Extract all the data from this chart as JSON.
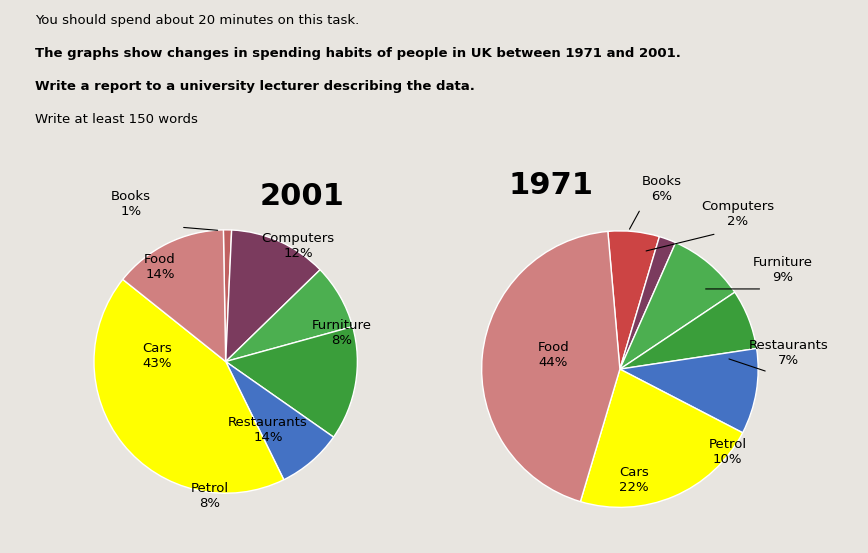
{
  "header_line1": "You should spend about 20 minutes on this task.",
  "header_line2": "The graphs show changes in spending habits of people in UK between 1971 and 2001.",
  "header_line3": "Write a report to a university lecturer describing the data.",
  "header_line4": "Write at least 150 words",
  "chart2001": {
    "title": "2001",
    "labels": [
      "Books",
      "Computers",
      "Furniture",
      "Restaurants",
      "Petrol",
      "Cars",
      "Food"
    ],
    "values": [
      1,
      12,
      8,
      14,
      8,
      43,
      14
    ],
    "colors": [
      "#c06060",
      "#7b3b5e",
      "#4caf50",
      "#3a9e3a",
      "#4472c4",
      "#ffff00",
      "#d08080"
    ],
    "startangle": 91
  },
  "chart1971": {
    "title": "1971",
    "labels": [
      "Books",
      "Computers",
      "Furniture",
      "Restaurants",
      "Petrol",
      "Cars",
      "Food"
    ],
    "values": [
      6,
      2,
      9,
      7,
      10,
      22,
      44
    ],
    "colors": [
      "#cc4444",
      "#7b3b5e",
      "#4caf50",
      "#3a9e3a",
      "#4472c4",
      "#ffff00",
      "#d08080"
    ],
    "startangle": 95
  },
  "bg_color": "#e8e5e0",
  "title_fontsize": 22,
  "label_fontsize": 9.5
}
